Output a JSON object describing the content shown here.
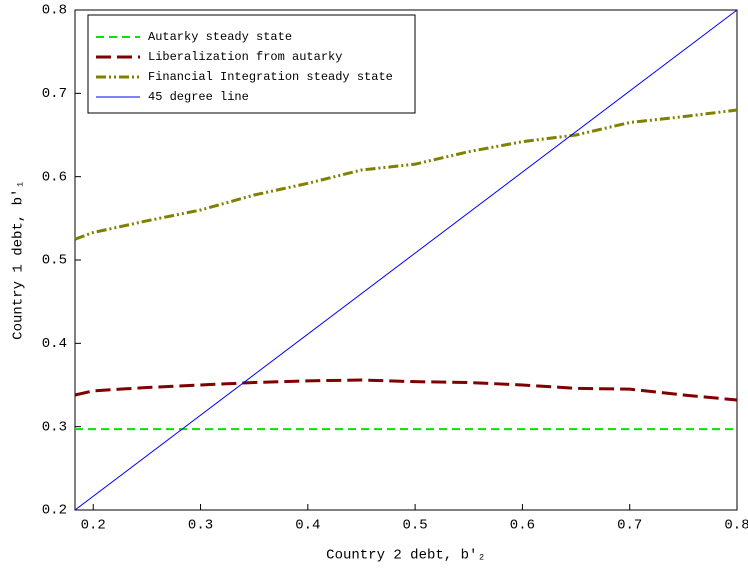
{
  "chart_data": {
    "type": "line",
    "xlabel": "Country 2 debt, b′₂",
    "ylabel": "Country 1 debt, b′₁",
    "xlim": [
      0.183,
      0.8
    ],
    "ylim": [
      0.2,
      0.8
    ],
    "xticks": [
      0.2,
      0.3,
      0.4,
      0.5,
      0.6,
      0.7,
      0.8
    ],
    "yticks": [
      0.2,
      0.3,
      0.4,
      0.5,
      0.6,
      0.7,
      0.8
    ],
    "legend": "upper left",
    "series": [
      {
        "name": "Autarky steady state",
        "color": "#00e600",
        "dash": "8,5",
        "width": 2,
        "x": [
          0.183,
          0.8
        ],
        "values": [
          0.297,
          0.297
        ]
      },
      {
        "name": "Liberalization from autarky",
        "color": "#7f0000",
        "dash": "15,6",
        "width": 3,
        "x": [
          0.183,
          0.2,
          0.25,
          0.3,
          0.35,
          0.4,
          0.45,
          0.5,
          0.55,
          0.6,
          0.65,
          0.7,
          0.75,
          0.8
        ],
        "values": [
          0.338,
          0.343,
          0.347,
          0.35,
          0.353,
          0.355,
          0.356,
          0.354,
          0.353,
          0.35,
          0.346,
          0.345,
          0.338,
          0.332
        ]
      },
      {
        "name": "Financial Integration steady state",
        "color": "#808000",
        "dash": "10,3,2,3,2,3",
        "width": 3,
        "x": [
          0.183,
          0.2,
          0.25,
          0.3,
          0.35,
          0.4,
          0.45,
          0.5,
          0.55,
          0.6,
          0.65,
          0.7,
          0.75,
          0.8
        ],
        "values": [
          0.525,
          0.533,
          0.547,
          0.56,
          0.578,
          0.592,
          0.608,
          0.615,
          0.63,
          0.642,
          0.65,
          0.665,
          0.672,
          0.68
        ]
      },
      {
        "name": "45 degree line",
        "color": "#0000ff",
        "dash": "none",
        "width": 1,
        "x": [
          0.183,
          0.8
        ],
        "values": [
          0.2,
          0.8
        ]
      }
    ]
  }
}
